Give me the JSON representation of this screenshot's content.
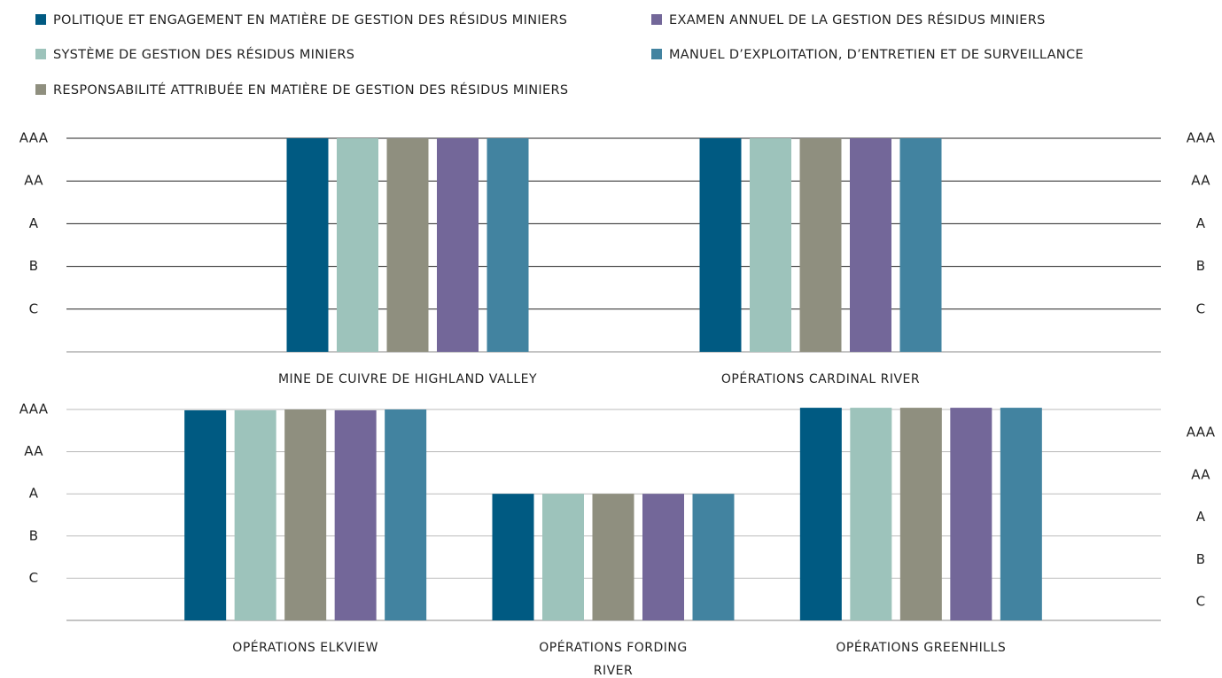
{
  "chart_data": [
    {
      "type": "bar",
      "categories": [
        "MINE DE CUIVRE DE HIGHLAND VALLEY",
        "OPÉRATIONS CARDINAL RIVER"
      ],
      "series": [
        {
          "name": "POLITIQUE ET ENGAGEMENT EN MATIÈRE DE GESTION DES RÉSIDUS MINIERS",
          "color": "#005a82",
          "values": [
            5,
            5
          ]
        },
        {
          "name": "SYSTÈME DE GESTION DES RÉSIDUS MINIERS",
          "color": "#9dc3bb",
          "values": [
            5,
            5
          ]
        },
        {
          "name": "RESPONSABILITÉ ATTRIBUÉE EN MATIÈRE DE GESTION DES RÉSIDUS MINIERS",
          "color": "#8f8f7f",
          "values": [
            5,
            5
          ]
        },
        {
          "name": "EXAMEN ANNUEL DE LA GESTION DES RÉSIDUS MINIERS",
          "color": "#736799",
          "values": [
            5,
            5
          ]
        },
        {
          "name": "MANUEL D’EXPLOITATION, D’ENTRETIEN ET DE SURVEILLANCE",
          "color": "#4283a0",
          "values": [
            5,
            5
          ]
        }
      ],
      "ylim": [
        0,
        5
      ],
      "yticks": [
        {
          "value": 5,
          "label": "AAA"
        },
        {
          "value": 4,
          "label": "AA"
        },
        {
          "value": 3,
          "label": "A"
        },
        {
          "value": 2,
          "label": "B"
        },
        {
          "value": 1,
          "label": "C"
        }
      ],
      "y2lim": [
        0,
        5
      ],
      "y2ticks": [
        {
          "value": 5,
          "label": "AAA"
        },
        {
          "value": 4,
          "label": "AA"
        },
        {
          "value": 3,
          "label": "A"
        },
        {
          "value": 2,
          "label": "B"
        },
        {
          "value": 1,
          "label": "C"
        }
      ],
      "grid": true
    },
    {
      "type": "bar",
      "categories": [
        "OPÉRATIONS ELKVIEW",
        "OPÉRATIONS FORDING RIVER",
        "OPÉRATIONS GREENHILLS"
      ],
      "series": [
        {
          "color": "#005a82",
          "values": [
            4.98,
            3,
            5.04
          ]
        },
        {
          "color": "#9dc3bb",
          "values": [
            4.98,
            3,
            5.04
          ]
        },
        {
          "color": "#8f8f7f",
          "values": [
            5,
            3,
            5.04
          ]
        },
        {
          "color": "#736799",
          "values": [
            4.98,
            3,
            5.04
          ]
        },
        {
          "color": "#4283a0",
          "values": [
            5,
            3,
            5.04
          ]
        }
      ],
      "ylim": [
        0,
        5.05
      ],
      "yticks": [
        {
          "value": 5,
          "label": "AAA"
        },
        {
          "value": 4,
          "label": "AA"
        },
        {
          "value": 3,
          "label": "A"
        },
        {
          "value": 2,
          "label": "B"
        },
        {
          "value": 1,
          "label": "C"
        }
      ],
      "y2lim": [
        0.56,
        5.6
      ],
      "y2ticks": [
        {
          "value": 5,
          "label": "AAA"
        },
        {
          "value": 4,
          "label": "AA"
        },
        {
          "value": 3,
          "label": "A"
        },
        {
          "value": 2,
          "label": "B"
        },
        {
          "value": 1,
          "label": "C"
        }
      ],
      "grid": true
    }
  ]
}
